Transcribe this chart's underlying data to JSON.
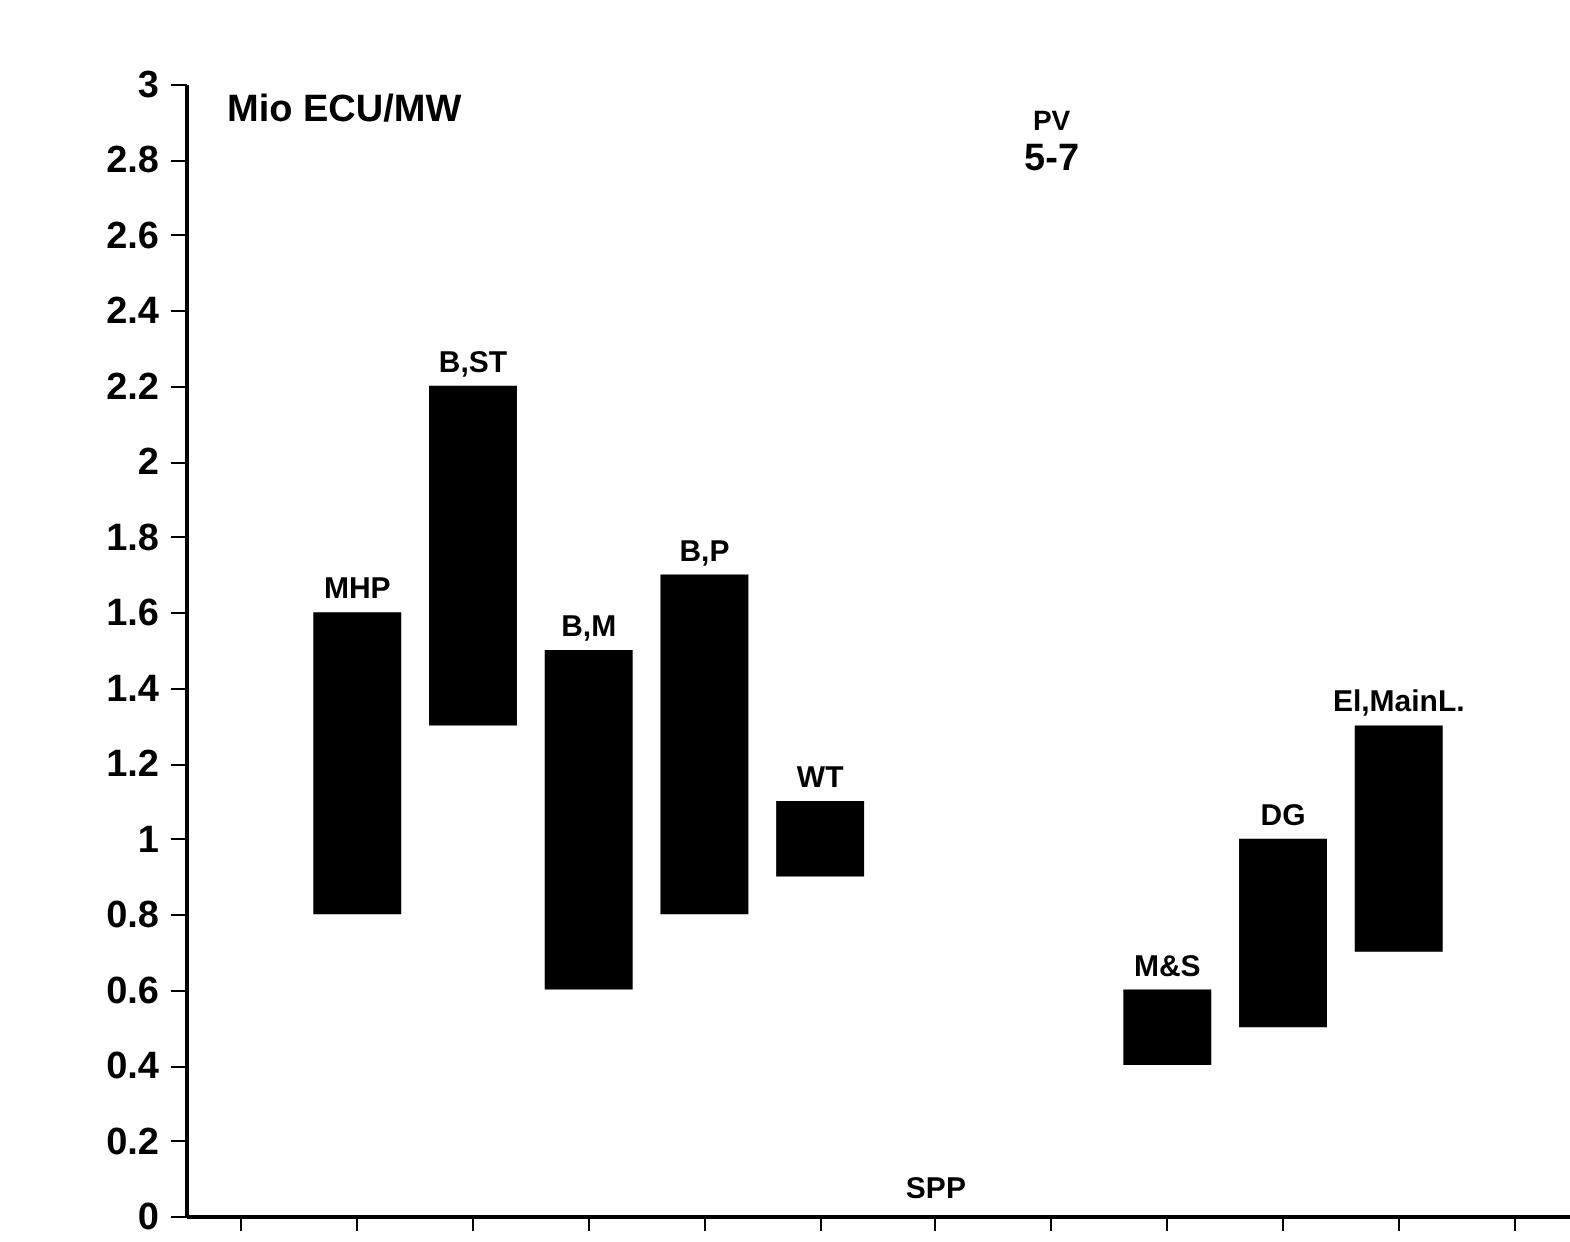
{
  "chart_data": {
    "type": "bar",
    "ylabel": "Mio ECU/MW",
    "categories": [
      null,
      "MHP",
      "B,ST",
      "B,M",
      "B,P",
      "WT",
      "SPP",
      "PV",
      "M&S",
      "DG",
      "El,MainL.",
      null
    ],
    "base": [
      null,
      0.8,
      1.3,
      0.6,
      0.8,
      0.9,
      null,
      null,
      0.4,
      0.5,
      0.7,
      null
    ],
    "values": [
      null,
      0.8,
      0.9,
      0.9,
      0.9,
      0.2,
      null,
      null,
      0.2,
      0.5,
      0.6,
      null
    ],
    "color": "#000000",
    "ylim": [
      0,
      3
    ],
    "yticks": [
      0,
      0.2,
      0.4,
      0.6,
      0.8,
      1,
      1.2,
      1.4,
      1.6,
      1.8,
      2,
      2.2,
      2.4,
      2.6,
      2.8,
      3
    ],
    "tick_labels": "y",
    "grid": false,
    "annotations": [
      "5-7"
    ]
  }
}
